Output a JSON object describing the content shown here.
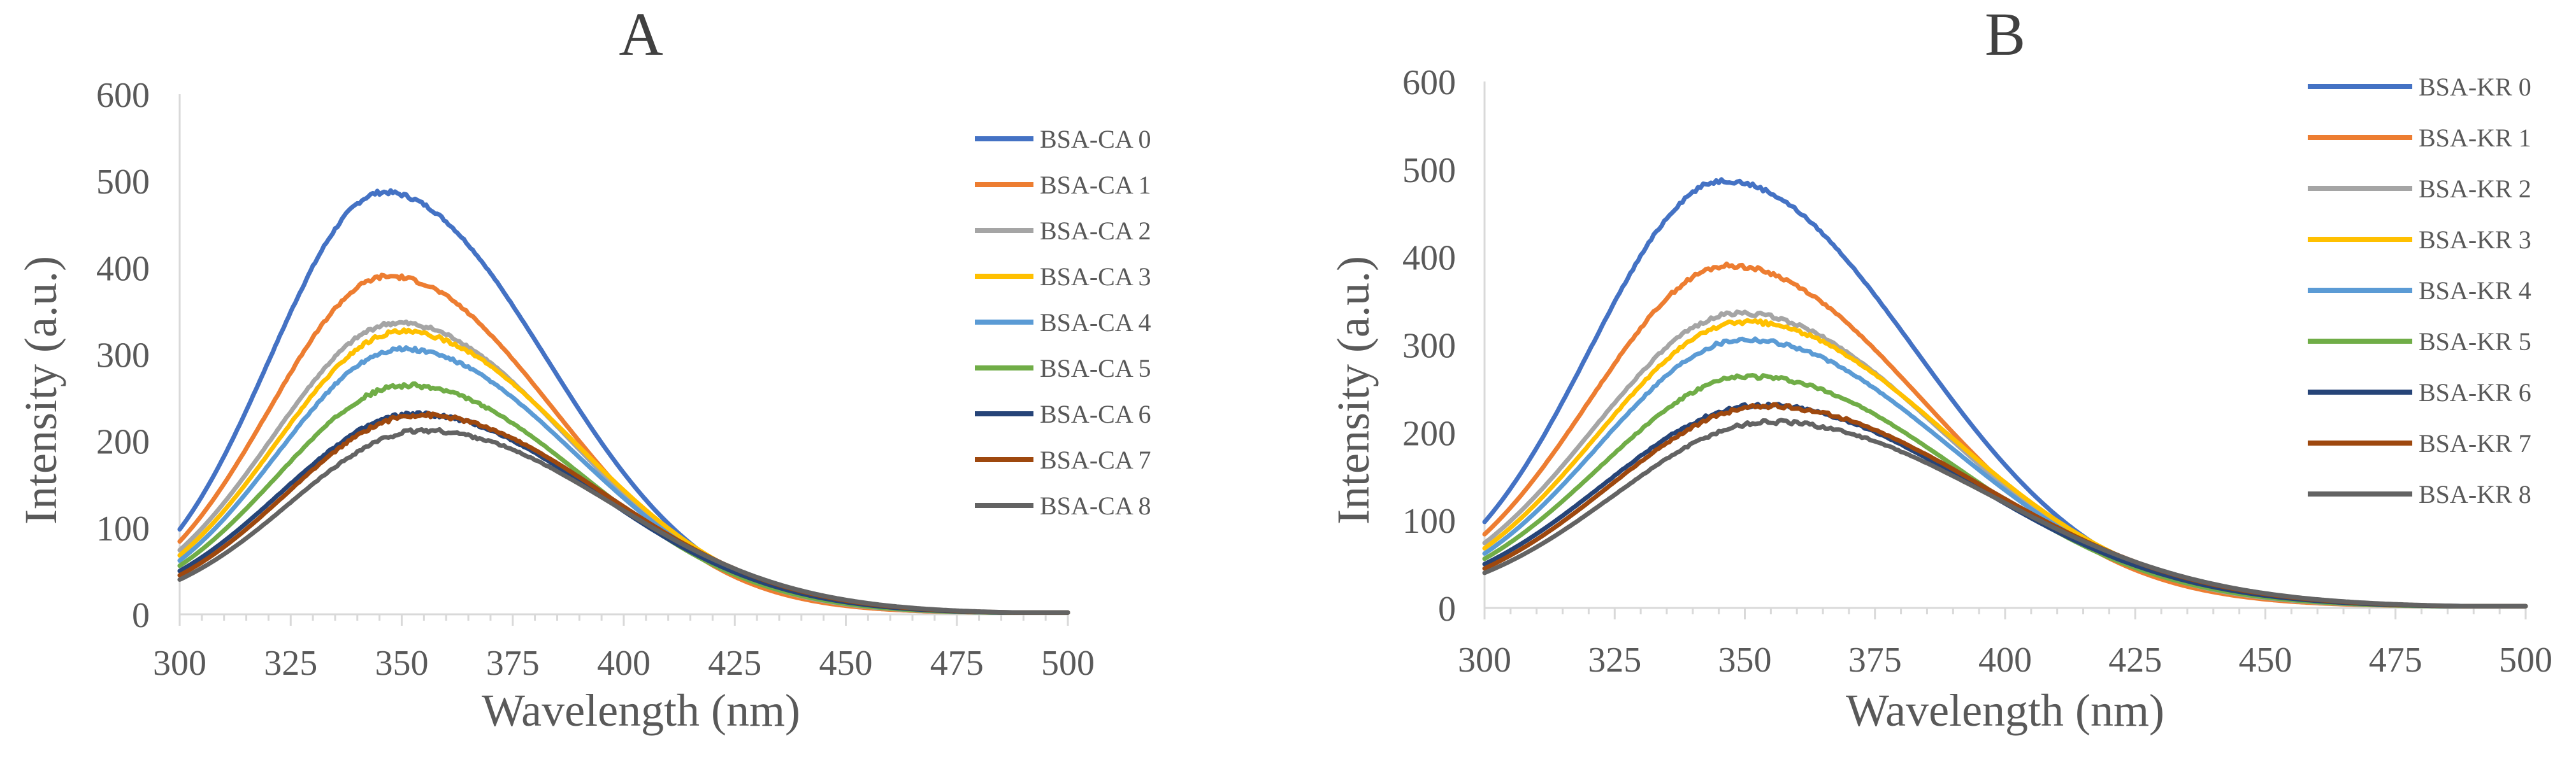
{
  "chart_data": [
    {
      "type": "line",
      "title": "A",
      "xlabel": "Wavelength (nm)",
      "ylabel": "Intensity (a.u.)",
      "xlim": [
        300,
        500
      ],
      "ylim": [
        0,
        600
      ],
      "x_ticks": [
        "300",
        "325",
        "350",
        "375",
        "400",
        "425",
        "450",
        "475",
        "500"
      ],
      "y_ticks": [
        "0",
        "100",
        "200",
        "300",
        "400",
        "500",
        "600"
      ],
      "grid": false,
      "legend_position": "right",
      "series": [
        {
          "name": "BSA-CA 0",
          "color": "#4472C4",
          "peak_x": 346,
          "peak_y": 487,
          "start_y": 98
        },
        {
          "name": "BSA-CA 1",
          "color": "#ED7D31",
          "peak_x": 347,
          "peak_y": 390,
          "start_y": 84
        },
        {
          "name": "BSA-CA 2",
          "color": "#A5A5A5",
          "peak_x": 349,
          "peak_y": 336,
          "start_y": 74
        },
        {
          "name": "BSA-CA 3",
          "color": "#FFC000",
          "peak_x": 350,
          "peak_y": 326,
          "start_y": 68
        },
        {
          "name": "BSA-CA 4",
          "color": "#5B9BD5",
          "peak_x": 350,
          "peak_y": 306,
          "start_y": 62
        },
        {
          "name": "BSA-CA 5",
          "color": "#70AD47",
          "peak_x": 351,
          "peak_y": 264,
          "start_y": 56
        },
        {
          "name": "BSA-CA 6",
          "color": "#264478",
          "peak_x": 353,
          "peak_y": 231,
          "start_y": 50
        },
        {
          "name": "BSA-CA 7",
          "color": "#9E480E",
          "peak_x": 354,
          "peak_y": 230,
          "start_y": 45
        },
        {
          "name": "BSA-CA 8",
          "color": "#636363",
          "peak_x": 355,
          "peak_y": 212,
          "start_y": 40
        }
      ]
    },
    {
      "type": "line",
      "title": "B",
      "xlabel": "Wavelength (nm)",
      "ylabel": "Intensity (a.u.)",
      "xlim": [
        300,
        500
      ],
      "ylim": [
        0,
        600
      ],
      "x_ticks": [
        "300",
        "325",
        "350",
        "375",
        "400",
        "425",
        "450",
        "475",
        "500"
      ],
      "y_ticks": [
        "0",
        "100",
        "200",
        "300",
        "400",
        "500",
        "600"
      ],
      "grid": false,
      "legend_position": "top-right",
      "series": [
        {
          "name": "BSA-KR 0",
          "color": "#4472C4",
          "peak_x": 346,
          "peak_y": 487,
          "start_y": 98
        },
        {
          "name": "BSA-KR 1",
          "color": "#ED7D31",
          "peak_x": 347,
          "peak_y": 390,
          "start_y": 84
        },
        {
          "name": "BSA-KR 2",
          "color": "#A5A5A5",
          "peak_x": 349,
          "peak_y": 336,
          "start_y": 74
        },
        {
          "name": "BSA-KR 3",
          "color": "#FFC000",
          "peak_x": 350,
          "peak_y": 326,
          "start_y": 68
        },
        {
          "name": "BSA-KR 4",
          "color": "#5B9BD5",
          "peak_x": 350,
          "peak_y": 306,
          "start_y": 62
        },
        {
          "name": "BSA-KR 5",
          "color": "#70AD47",
          "peak_x": 351,
          "peak_y": 264,
          "start_y": 56
        },
        {
          "name": "BSA-KR 6",
          "color": "#264478",
          "peak_x": 353,
          "peak_y": 231,
          "start_y": 50
        },
        {
          "name": "BSA-KR 7",
          "color": "#9E480E",
          "peak_x": 354,
          "peak_y": 230,
          "start_y": 45
        },
        {
          "name": "BSA-KR 8",
          "color": "#636363",
          "peak_x": 355,
          "peak_y": 212,
          "start_y": 40
        }
      ]
    }
  ]
}
